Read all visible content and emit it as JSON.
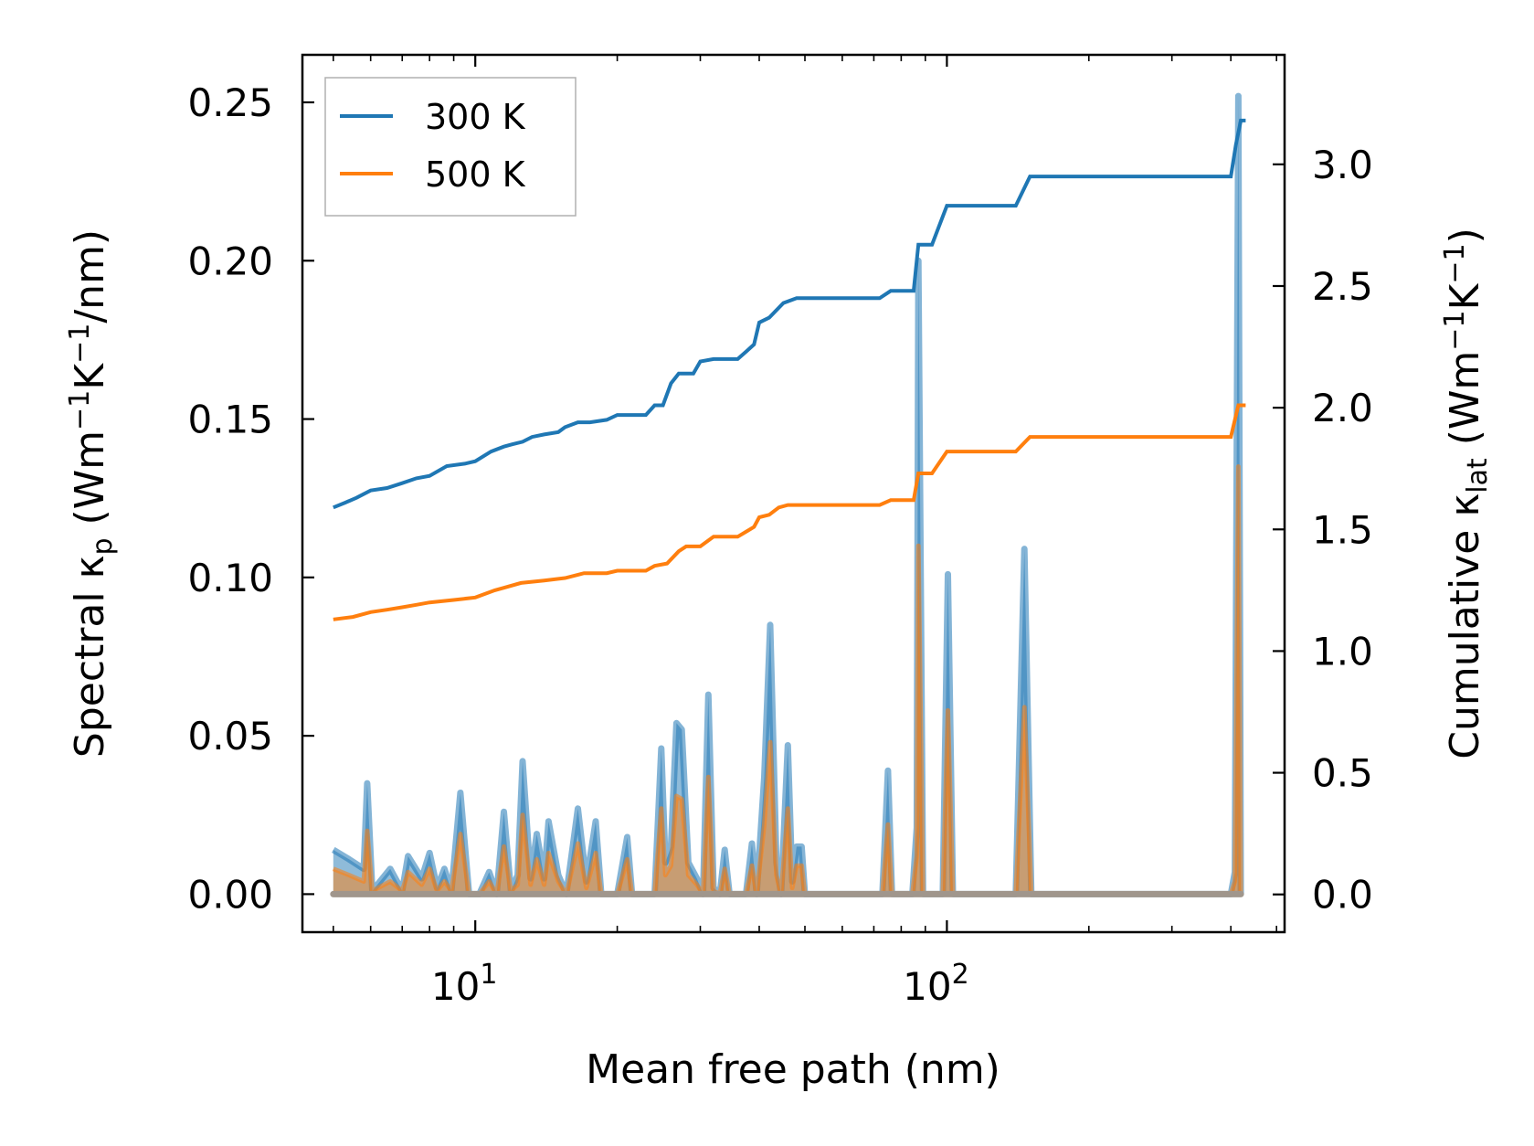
{
  "chart_data": {
    "type": "line",
    "xlabel": "Mean free path (nm)",
    "ylabel_left": {
      "main": "Spectral κ",
      "sub": "p",
      "unit_open": " (Wm",
      "sup1": "−1",
      "k": "K",
      "sup2": "−1",
      "unit_close": "/nm)"
    },
    "ylabel_right": {
      "main": "Cumulative κ",
      "sub": "lat",
      "unit_open": " (Wm",
      "sup1": "−1",
      "k": "K",
      "sup2": "−1",
      "unit_close": ")"
    },
    "x_scale": "log",
    "xlim": [
      4.3,
      520
    ],
    "ylim_left": [
      -0.012,
      0.265
    ],
    "ylim_right": [
      -0.155,
      3.45
    ],
    "x_ticks": [
      {
        "value": 10,
        "base": "10",
        "exp": "1"
      },
      {
        "value": 100,
        "base": "10",
        "exp": "2"
      }
    ],
    "y_ticks_left": [
      {
        "value": 0.0,
        "label": "0.00"
      },
      {
        "value": 0.05,
        "label": "0.05"
      },
      {
        "value": 0.1,
        "label": "0.10"
      },
      {
        "value": 0.15,
        "label": "0.15"
      },
      {
        "value": 0.2,
        "label": "0.20"
      },
      {
        "value": 0.25,
        "label": "0.25"
      }
    ],
    "y_ticks_right": [
      {
        "value": 0.0,
        "label": "0.0"
      },
      {
        "value": 0.5,
        "label": "0.5"
      },
      {
        "value": 1.0,
        "label": "1.0"
      },
      {
        "value": 1.5,
        "label": "1.5"
      },
      {
        "value": 2.0,
        "label": "2.0"
      },
      {
        "value": 2.5,
        "label": "2.5"
      },
      {
        "value": 3.0,
        "label": "3.0"
      }
    ],
    "legend": {
      "position": "upper-left"
    },
    "series": [
      {
        "name": "300 K",
        "color": "#1f77b4",
        "axis": "right",
        "kind": "cumulative",
        "points": [
          [
            5,
            1.59
          ],
          [
            5.3,
            1.61
          ],
          [
            5.6,
            1.63
          ],
          [
            6,
            1.66
          ],
          [
            6.5,
            1.67
          ],
          [
            7,
            1.69
          ],
          [
            7.5,
            1.71
          ],
          [
            8,
            1.72
          ],
          [
            8.7,
            1.76
          ],
          [
            9.5,
            1.77
          ],
          [
            10,
            1.78
          ],
          [
            10.8,
            1.82
          ],
          [
            11.5,
            1.84
          ],
          [
            12,
            1.85
          ],
          [
            12.6,
            1.86
          ],
          [
            13.2,
            1.88
          ],
          [
            14,
            1.89
          ],
          [
            15,
            1.9
          ],
          [
            15.5,
            1.92
          ],
          [
            16.5,
            1.94
          ],
          [
            17.5,
            1.94
          ],
          [
            19,
            1.95
          ],
          [
            20,
            1.97
          ],
          [
            23,
            1.97
          ],
          [
            24,
            2.01
          ],
          [
            25,
            2.01
          ],
          [
            26,
            2.1
          ],
          [
            27,
            2.14
          ],
          [
            29,
            2.14
          ],
          [
            30,
            2.19
          ],
          [
            32,
            2.2
          ],
          [
            36,
            2.2
          ],
          [
            37.5,
            2.23
          ],
          [
            39,
            2.26
          ],
          [
            40,
            2.35
          ],
          [
            42,
            2.37
          ],
          [
            45,
            2.43
          ],
          [
            48,
            2.45
          ],
          [
            72,
            2.45
          ],
          [
            76,
            2.48
          ],
          [
            85,
            2.48
          ],
          [
            87,
            2.67
          ],
          [
            93,
            2.67
          ],
          [
            100,
            2.83
          ],
          [
            140,
            2.83
          ],
          [
            150,
            2.95
          ],
          [
            400,
            2.95
          ],
          [
            410,
            3.08
          ],
          [
            420,
            3.18
          ],
          [
            430,
            3.18
          ]
        ]
      },
      {
        "name": "500 K",
        "color": "#ff7f0e",
        "axis": "right",
        "kind": "cumulative",
        "points": [
          [
            5,
            1.13
          ],
          [
            5.5,
            1.14
          ],
          [
            6,
            1.16
          ],
          [
            6.5,
            1.17
          ],
          [
            7,
            1.18
          ],
          [
            7.5,
            1.19
          ],
          [
            8,
            1.2
          ],
          [
            9,
            1.21
          ],
          [
            10,
            1.22
          ],
          [
            11,
            1.25
          ],
          [
            11.5,
            1.26
          ],
          [
            12.5,
            1.28
          ],
          [
            14,
            1.29
          ],
          [
            15.5,
            1.3
          ],
          [
            17,
            1.32
          ],
          [
            19,
            1.32
          ],
          [
            20,
            1.33
          ],
          [
            23,
            1.33
          ],
          [
            24,
            1.35
          ],
          [
            25.5,
            1.36
          ],
          [
            27,
            1.41
          ],
          [
            28,
            1.43
          ],
          [
            30,
            1.43
          ],
          [
            32,
            1.47
          ],
          [
            36,
            1.47
          ],
          [
            37.5,
            1.49
          ],
          [
            39,
            1.51
          ],
          [
            40,
            1.55
          ],
          [
            42,
            1.56
          ],
          [
            44,
            1.59
          ],
          [
            46,
            1.6
          ],
          [
            72,
            1.6
          ],
          [
            76,
            1.62
          ],
          [
            85,
            1.62
          ],
          [
            87,
            1.73
          ],
          [
            93,
            1.73
          ],
          [
            100,
            1.82
          ],
          [
            140,
            1.82
          ],
          [
            150,
            1.88
          ],
          [
            400,
            1.88
          ],
          [
            415,
            2.01
          ],
          [
            430,
            2.01
          ]
        ]
      },
      {
        "name": "300 K spectral",
        "color": "#1f77b4",
        "axis": "left",
        "kind": "spectral",
        "points": [
          [
            5,
            0.014
          ],
          [
            5.4,
            0.011
          ],
          [
            5.8,
            0.008
          ],
          [
            5.9,
            0.035
          ],
          [
            6.05,
            0.001
          ],
          [
            6.6,
            0.008
          ],
          [
            7,
            0.001
          ],
          [
            7.2,
            0.012
          ],
          [
            7.7,
            0.005
          ],
          [
            8,
            0.013
          ],
          [
            8.3,
            0.002
          ],
          [
            8.6,
            0.008
          ],
          [
            8.9,
            0.001
          ],
          [
            9.3,
            0.032
          ],
          [
            9.7,
            0.0
          ],
          [
            10.2,
            0.0
          ],
          [
            10.7,
            0.007
          ],
          [
            11.1,
            0.0
          ],
          [
            11.5,
            0.026
          ],
          [
            11.9,
            0.001
          ],
          [
            12.3,
            0.006
          ],
          [
            12.6,
            0.042
          ],
          [
            13.1,
            0.005
          ],
          [
            13.5,
            0.019
          ],
          [
            14,
            0.005
          ],
          [
            14.3,
            0.023
          ],
          [
            15,
            0.006
          ],
          [
            15.6,
            0.0
          ],
          [
            16.5,
            0.027
          ],
          [
            17.2,
            0.004
          ],
          [
            18,
            0.023
          ],
          [
            18.5,
            0.0
          ],
          [
            20,
            0.0
          ],
          [
            21,
            0.018
          ],
          [
            21.5,
            0.0
          ],
          [
            24,
            0.0
          ],
          [
            24.8,
            0.046
          ],
          [
            25.3,
            0.01
          ],
          [
            26,
            0.015
          ],
          [
            26.7,
            0.054
          ],
          [
            27.4,
            0.052
          ],
          [
            28.3,
            0.01
          ],
          [
            29.5,
            0.005
          ],
          [
            30.4,
            0.0
          ],
          [
            31.2,
            0.063
          ],
          [
            32,
            0.002
          ],
          [
            33,
            0.0
          ],
          [
            33.8,
            0.014
          ],
          [
            34.6,
            0.0
          ],
          [
            37.5,
            0.0
          ],
          [
            38.6,
            0.016
          ],
          [
            39.5,
            0.0
          ],
          [
            41,
            0.037
          ],
          [
            42.2,
            0.085
          ],
          [
            43.5,
            0.01
          ],
          [
            44.5,
            0.0
          ],
          [
            46,
            0.047
          ],
          [
            47,
            0.004
          ],
          [
            48,
            0.015
          ],
          [
            49.2,
            0.015
          ],
          [
            50,
            0.0
          ],
          [
            73,
            0.0
          ],
          [
            75,
            0.039
          ],
          [
            76.5,
            0.0
          ],
          [
            84.5,
            0.0
          ],
          [
            86.3,
            0.021
          ],
          [
            87,
            0.2
          ],
          [
            89,
            0.0
          ],
          [
            98,
            0.0
          ],
          [
            100.5,
            0.101
          ],
          [
            103,
            0.0
          ],
          [
            140,
            0.0
          ],
          [
            146,
            0.109
          ],
          [
            151,
            0.0
          ],
          [
            400,
            0.0
          ],
          [
            408,
            0.007
          ],
          [
            415,
            0.252
          ],
          [
            420,
            0.0
          ]
        ]
      },
      {
        "name": "500 K spectral",
        "color": "#ff7f0e",
        "axis": "left",
        "kind": "spectral",
        "points": [
          [
            5,
            0.008
          ],
          [
            5.4,
            0.006
          ],
          [
            5.8,
            0.004
          ],
          [
            5.9,
            0.02
          ],
          [
            6.05,
            0.001
          ],
          [
            6.6,
            0.004
          ],
          [
            7,
            0.001
          ],
          [
            7.2,
            0.007
          ],
          [
            7.7,
            0.003
          ],
          [
            8,
            0.008
          ],
          [
            8.3,
            0.001
          ],
          [
            8.6,
            0.004
          ],
          [
            8.9,
            0.001
          ],
          [
            9.3,
            0.019
          ],
          [
            9.7,
            0.0
          ],
          [
            10.2,
            0.0
          ],
          [
            10.7,
            0.004
          ],
          [
            11.1,
            0.0
          ],
          [
            11.5,
            0.015
          ],
          [
            11.9,
            0.001
          ],
          [
            12.3,
            0.003
          ],
          [
            12.6,
            0.025
          ],
          [
            13.1,
            0.003
          ],
          [
            13.5,
            0.011
          ],
          [
            14,
            0.003
          ],
          [
            14.3,
            0.013
          ],
          [
            15,
            0.004
          ],
          [
            15.6,
            0.0
          ],
          [
            16.5,
            0.016
          ],
          [
            17.2,
            0.002
          ],
          [
            18,
            0.013
          ],
          [
            18.5,
            0.0
          ],
          [
            20,
            0.0
          ],
          [
            21,
            0.011
          ],
          [
            21.5,
            0.0
          ],
          [
            24,
            0.0
          ],
          [
            24.8,
            0.027
          ],
          [
            25.3,
            0.006
          ],
          [
            26,
            0.009
          ],
          [
            26.7,
            0.031
          ],
          [
            27.4,
            0.03
          ],
          [
            28.3,
            0.006
          ],
          [
            29.5,
            0.003
          ],
          [
            30.4,
            0.0
          ],
          [
            31.2,
            0.037
          ],
          [
            32,
            0.001
          ],
          [
            33,
            0.0
          ],
          [
            33.8,
            0.008
          ],
          [
            34.6,
            0.0
          ],
          [
            37.5,
            0.0
          ],
          [
            38.6,
            0.009
          ],
          [
            39.5,
            0.0
          ],
          [
            41,
            0.022
          ],
          [
            42.2,
            0.048
          ],
          [
            43.5,
            0.006
          ],
          [
            44.5,
            0.0
          ],
          [
            46,
            0.027
          ],
          [
            47,
            0.002
          ],
          [
            48,
            0.009
          ],
          [
            49.2,
            0.009
          ],
          [
            50,
            0.0
          ],
          [
            73,
            0.0
          ],
          [
            75,
            0.022
          ],
          [
            76.5,
            0.0
          ],
          [
            84.5,
            0.0
          ],
          [
            86.3,
            0.012
          ],
          [
            87,
            0.11
          ],
          [
            89,
            0.0
          ],
          [
            98,
            0.0
          ],
          [
            100.5,
            0.058
          ],
          [
            103,
            0.0
          ],
          [
            140,
            0.0
          ],
          [
            146,
            0.059
          ],
          [
            151,
            0.0
          ],
          [
            400,
            0.0
          ],
          [
            408,
            0.004
          ],
          [
            415,
            0.135
          ],
          [
            420,
            0.0
          ]
        ]
      }
    ]
  }
}
